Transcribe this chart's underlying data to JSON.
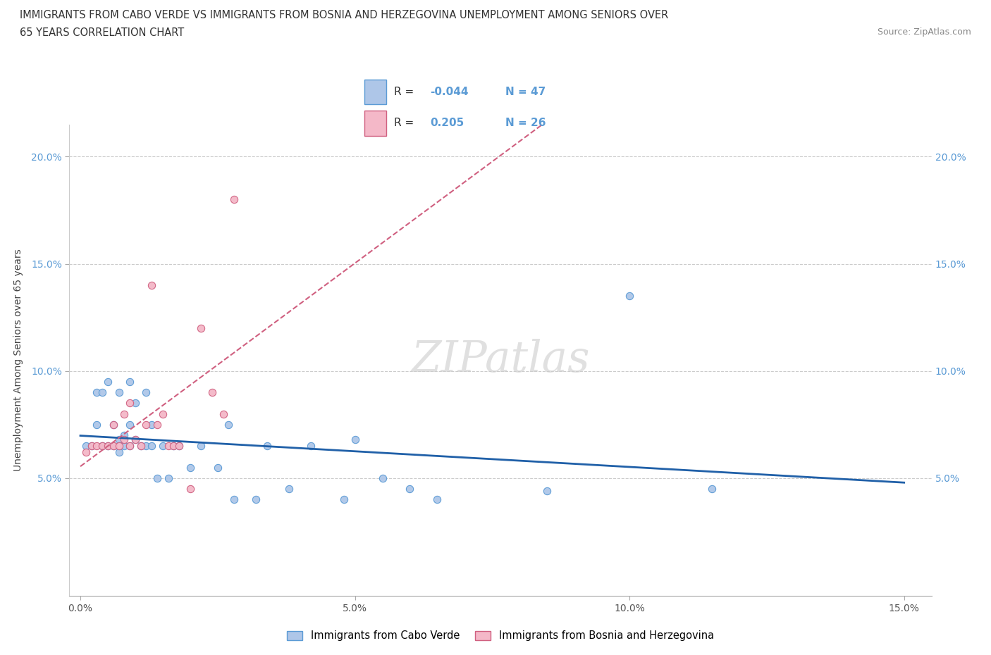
{
  "title_line1": "IMMIGRANTS FROM CABO VERDE VS IMMIGRANTS FROM BOSNIA AND HERZEGOVINA UNEMPLOYMENT AMONG SENIORS OVER",
  "title_line2": "65 YEARS CORRELATION CHART",
  "source": "Source: ZipAtlas.com",
  "ylabel": "Unemployment Among Seniors over 65 years",
  "xlim": [
    -0.002,
    0.155
  ],
  "ylim": [
    -0.005,
    0.215
  ],
  "xticks": [
    0.0,
    0.05,
    0.1,
    0.15
  ],
  "yticks": [
    0.05,
    0.1,
    0.15,
    0.2
  ],
  "xticklabels": [
    "0.0%",
    "5.0%",
    "10.0%",
    "15.0%"
  ],
  "yticklabels": [
    "5.0%",
    "10.0%",
    "15.0%",
    "20.0%"
  ],
  "cabo_verde_color": "#aec6e8",
  "cabo_verde_edge": "#5b9bd5",
  "bosnia_color": "#f4b8c8",
  "bosnia_edge": "#d06080",
  "cabo_verde_line_color": "#2060a8",
  "bosnia_line_color": "#d06080",
  "cabo_verde_x": [
    0.001,
    0.002,
    0.003,
    0.003,
    0.004,
    0.004,
    0.005,
    0.005,
    0.006,
    0.006,
    0.007,
    0.007,
    0.007,
    0.008,
    0.008,
    0.009,
    0.009,
    0.009,
    0.01,
    0.01,
    0.011,
    0.012,
    0.012,
    0.013,
    0.013,
    0.014,
    0.015,
    0.016,
    0.017,
    0.018,
    0.02,
    0.022,
    0.025,
    0.027,
    0.028,
    0.032,
    0.034,
    0.038,
    0.042,
    0.048,
    0.05,
    0.055,
    0.06,
    0.065,
    0.085,
    0.1,
    0.115
  ],
  "cabo_verde_y": [
    0.065,
    0.065,
    0.075,
    0.09,
    0.065,
    0.09,
    0.065,
    0.095,
    0.065,
    0.075,
    0.062,
    0.068,
    0.09,
    0.065,
    0.07,
    0.065,
    0.075,
    0.095,
    0.068,
    0.085,
    0.065,
    0.065,
    0.09,
    0.065,
    0.075,
    0.05,
    0.065,
    0.05,
    0.065,
    0.065,
    0.055,
    0.065,
    0.055,
    0.075,
    0.04,
    0.04,
    0.065,
    0.045,
    0.065,
    0.04,
    0.068,
    0.05,
    0.045,
    0.04,
    0.044,
    0.135,
    0.045
  ],
  "bosnia_x": [
    0.001,
    0.002,
    0.003,
    0.004,
    0.005,
    0.006,
    0.006,
    0.007,
    0.008,
    0.008,
    0.009,
    0.009,
    0.01,
    0.011,
    0.012,
    0.013,
    0.014,
    0.015,
    0.016,
    0.017,
    0.018,
    0.02,
    0.022,
    0.024,
    0.026,
    0.028
  ],
  "bosnia_y": [
    0.062,
    0.065,
    0.065,
    0.065,
    0.065,
    0.065,
    0.075,
    0.065,
    0.068,
    0.08,
    0.065,
    0.085,
    0.068,
    0.065,
    0.075,
    0.14,
    0.075,
    0.08,
    0.065,
    0.065,
    0.065,
    0.045,
    0.12,
    0.09,
    0.08,
    0.18
  ],
  "watermark": "ZIPatlas",
  "legend_label1": "Immigrants from Cabo Verde",
  "legend_label2": "Immigrants from Bosnia and Herzegovina",
  "cabo_verde_R_text": "-0.044",
  "cabo_verde_N_text": "47",
  "bosnia_R_text": "0.205",
  "bosnia_N_text": "26"
}
